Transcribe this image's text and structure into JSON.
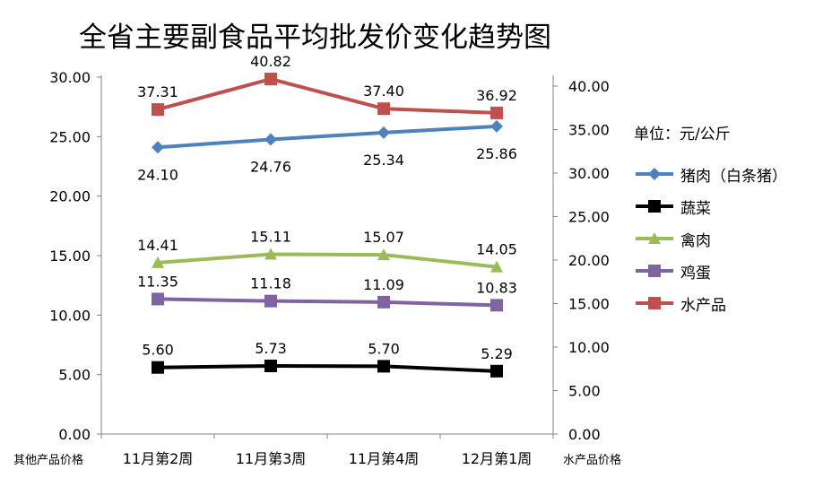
{
  "chart_data": {
    "type": "line",
    "title": "全省主要副食品平均批发价变化趋势图",
    "categories": [
      "11月第2周",
      "11月第3周",
      "11月第4周",
      "12月第1周"
    ],
    "left_axis": {
      "label": "其他产品价格",
      "ylim": [
        0,
        30
      ],
      "ticks": [
        "0.00",
        "5.00",
        "10.00",
        "15.00",
        "20.00",
        "25.00",
        "30.00"
      ]
    },
    "right_axis": {
      "label": "水产品价格",
      "ylim": [
        0,
        40
      ],
      "ticks": [
        "0.00",
        "5.00",
        "10.00",
        "15.00",
        "20.00",
        "25.00",
        "30.00",
        "35.00",
        "40.00"
      ]
    },
    "unit_note": "单位：元/公斤",
    "series": [
      {
        "name": "猪肉（白条猪）",
        "axis": "left",
        "color": "#4F81BD",
        "marker": "diamond",
        "values": [
          24.1,
          24.76,
          25.34,
          25.86
        ],
        "labels": [
          "24.10",
          "24.76",
          "25.34",
          "25.86"
        ],
        "label_pos": "below"
      },
      {
        "name": "蔬菜",
        "axis": "left",
        "color": "#000000",
        "marker": "square",
        "values": [
          5.6,
          5.73,
          5.7,
          5.29
        ],
        "labels": [
          "5.60",
          "5.73",
          "5.70",
          "5.29"
        ],
        "label_pos": "above"
      },
      {
        "name": "禽肉",
        "axis": "left",
        "color": "#9BBB59",
        "marker": "triangle",
        "values": [
          14.41,
          15.11,
          15.07,
          14.05
        ],
        "labels": [
          "14.41",
          "15.11",
          "15.07",
          "14.05"
        ],
        "label_pos": "above"
      },
      {
        "name": "鸡蛋",
        "axis": "left",
        "color": "#8064A2",
        "marker": "square",
        "values": [
          11.35,
          11.18,
          11.09,
          10.83
        ],
        "labels": [
          "11.35",
          "11.18",
          "11.09",
          "10.83"
        ],
        "label_pos": "above"
      },
      {
        "name": "水产品",
        "axis": "right",
        "color": "#C0504D",
        "marker": "square",
        "values": [
          37.31,
          40.82,
          37.4,
          36.92
        ],
        "labels": [
          "37.31",
          "40.82",
          "37.40",
          "36.92"
        ],
        "label_pos": "above"
      }
    ],
    "legend_position": "right",
    "grid": false
  }
}
